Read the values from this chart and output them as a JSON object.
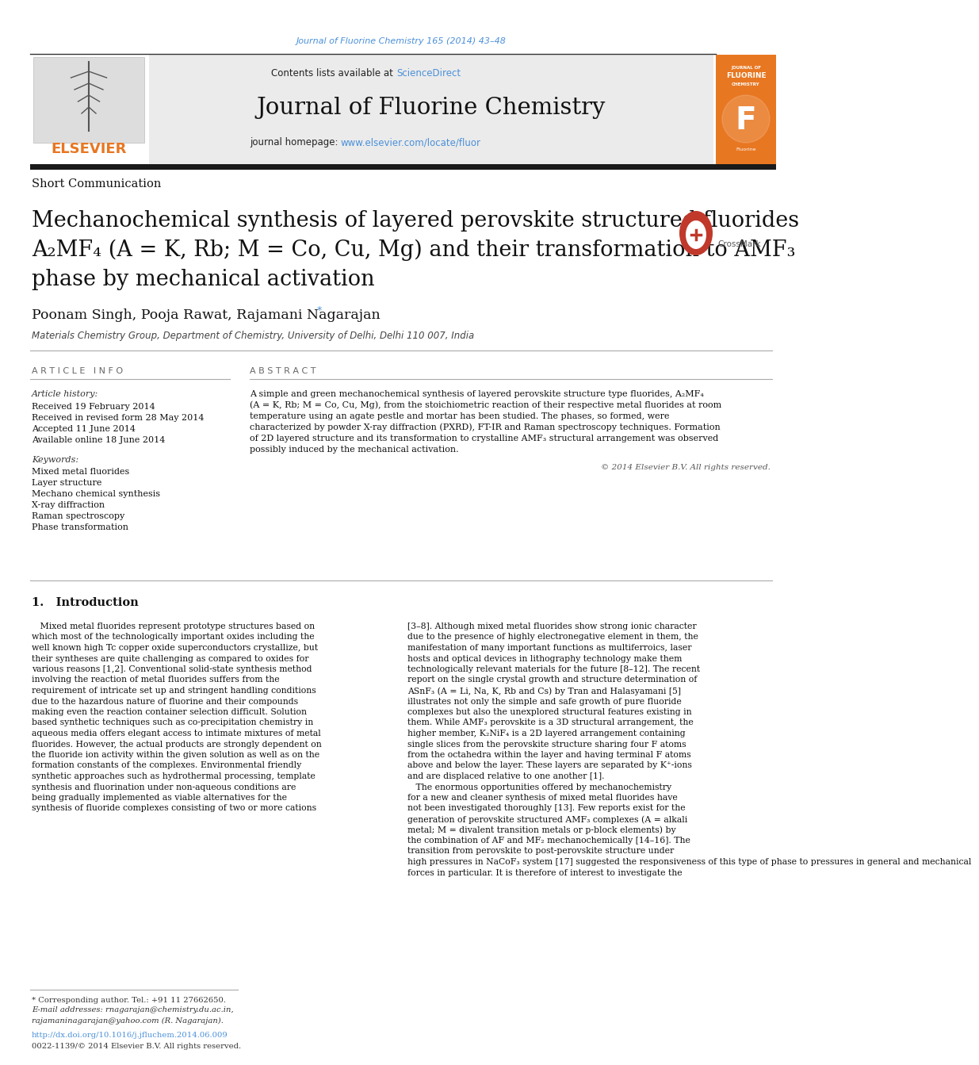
{
  "journal_ref": "Journal of Fluorine Chemistry 165 (2014) 43–48",
  "journal_ref_color": "#4a90d9",
  "contents_text": "Contents lists available at ",
  "sciencedirect_text": "ScienceDirect",
  "sciencedirect_color": "#4a90d9",
  "journal_title": "Journal of Fluorine Chemistry",
  "homepage_text": "journal homepage: ",
  "homepage_url": "www.elsevier.com/locate/fluor",
  "homepage_url_color": "#4a90d9",
  "section_label": "Short Communication",
  "article_title_line1": "Mechanochemical synthesis of layered perovskite structured fluorides",
  "article_title_line2": "A₂MF₄ (A = K, Rb; M = Co, Cu, Mg) and their transformation to AMF₃",
  "article_title_line3": "phase by mechanical activation",
  "authors": "Poonam Singh, Pooja Rawat, Rajamani Nagarajan",
  "affiliation": "Materials Chemistry Group, Department of Chemistry, University of Delhi, Delhi 110 007, India",
  "article_info_title": "A R T I C L E   I N F O",
  "abstract_title": "A B S T R A C T",
  "article_history_label": "Article history:",
  "received_date": "Received 19 February 2014",
  "revised_date": "Received in revised form 28 May 2014",
  "accepted_date": "Accepted 11 June 2014",
  "available_date": "Available online 18 June 2014",
  "keywords_label": "Keywords:",
  "keyword1": "Mixed metal fluorides",
  "keyword2": "Layer structure",
  "keyword3": "Mechano chemical synthesis",
  "keyword4": "X-ray diffraction",
  "keyword5": "Raman spectroscopy",
  "keyword6": "Phase transformation",
  "abstract_text_lines": [
    "A simple and green mechanochemical synthesis of layered perovskite structure type fluorides, A₂MF₄",
    "(A = K, Rb; M = Co, Cu, Mg), from the stoichiometric reaction of their respective metal fluorides at room",
    "temperature using an agate pestle and mortar has been studied. The phases, so formed, were",
    "characterized by powder X-ray diffraction (PXRD), FT-IR and Raman spectroscopy techniques. Formation",
    "of 2D layered structure and its transformation to crystalline AMF₃ structural arrangement was observed",
    "possibly induced by the mechanical activation."
  ],
  "copyright_text": "© 2014 Elsevier B.V. All rights reserved.",
  "intro_title": "1.   Introduction",
  "intro_col1_lines": [
    "   Mixed metal fluorides represent prototype structures based on",
    "which most of the technologically important oxides including the",
    "well known high Tc copper oxide superconductors crystallize, but",
    "their syntheses are quite challenging as compared to oxides for",
    "various reasons [1,2]. Conventional solid-state synthesis method",
    "involving the reaction of metal fluorides suffers from the",
    "requirement of intricate set up and stringent handling conditions",
    "due to the hazardous nature of fluorine and their compounds",
    "making even the reaction container selection difficult. Solution",
    "based synthetic techniques such as co-precipitation chemistry in",
    "aqueous media offers elegant access to intimate mixtures of metal",
    "fluorides. However, the actual products are strongly dependent on",
    "the fluoride ion activity within the given solution as well as on the",
    "formation constants of the complexes. Environmental friendly",
    "synthetic approaches such as hydrothermal processing, template",
    "synthesis and fluorination under non-aqueous conditions are",
    "being gradually implemented as viable alternatives for the",
    "synthesis of fluoride complexes consisting of two or more cations"
  ],
  "intro_col2_lines": [
    "[3–8]. Although mixed metal fluorides show strong ionic character",
    "due to the presence of highly electronegative element in them, the",
    "manifestation of many important functions as multiferroics, laser",
    "hosts and optical devices in lithography technology make them",
    "technologically relevant materials for the future [8–12]. The recent",
    "report on the single crystal growth and structure determination of",
    "ASnF₃ (A = Li, Na, K, Rb and Cs) by Tran and Halasyamani [5]",
    "illustrates not only the simple and safe growth of pure fluoride",
    "complexes but also the unexplored structural features existing in",
    "them. While AMF₃ perovskite is a 3D structural arrangement, the",
    "higher member, K₂NiF₄ is a 2D layered arrangement containing",
    "single slices from the perovskite structure sharing four F atoms",
    "from the octahedra within the layer and having terminal F atoms",
    "above and below the layer. These layers are separated by K⁺-ions",
    "and are displaced relative to one another [1].",
    "   The enormous opportunities offered by mechanochemistry",
    "for a new and cleaner synthesis of mixed metal fluorides have",
    "not been investigated thoroughly [13]. Few reports exist for the",
    "generation of perovskite structured AMF₃ complexes (A = alkali",
    "metal; M = divalent transition metals or p-block elements) by",
    "the combination of AF and MF₂ mechanochemically [14–16]. The",
    "transition from perovskite to post-perovskite structure under",
    "high pressures in NaCoF₃ system [17] suggested the responsiveness of this type of phase to pressures in general and mechanical",
    "forces in particular. It is therefore of interest to investigate the"
  ],
  "footnote_line1": "* Corresponding author. Tel.: +91 11 27662650.",
  "footnote_line2": "E-mail addresses: rnagarajan@chemistry.du.ac.in,",
  "footnote_line3": "rajamaninagarajan@yahoo.com (R. Nagarajan).",
  "footnote_doi": "http://dx.doi.org/10.1016/j.jfluchem.2014.06.009",
  "footnote_issn": "0022-1139/© 2014 Elsevier B.V. All rights reserved.",
  "elsevier_orange": "#e87722",
  "elsevier_text": "ELSEVIER",
  "page_bg": "#ffffff",
  "link_color": "#4a90d9"
}
